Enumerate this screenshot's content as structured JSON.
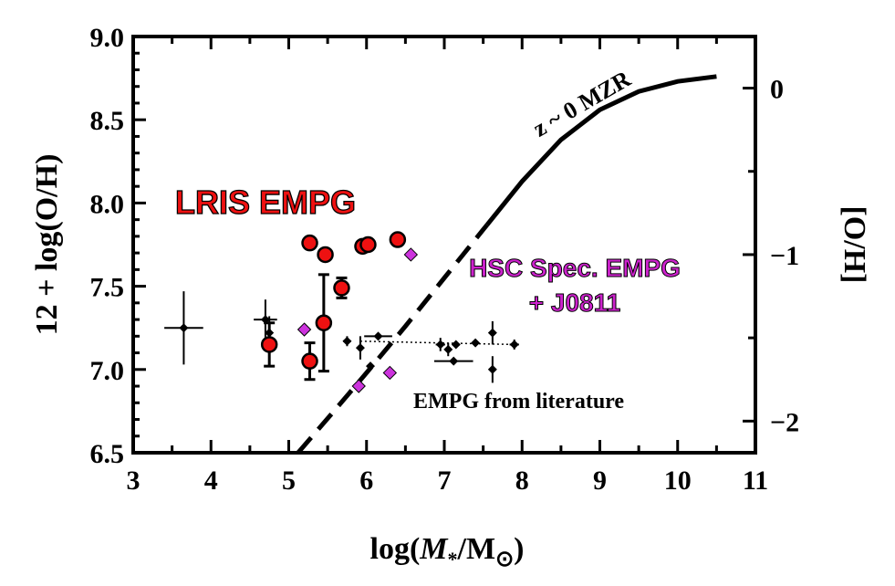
{
  "chart_data": {
    "type": "scatter",
    "xlabel": {
      "prefix": "log(",
      "mvar": "M",
      "sub": "*",
      "slash": "/M",
      "sun": "⊙",
      "suffix": ")"
    },
    "ylabel_left": "12 + log(O/H)",
    "ylabel_right": "[O/H]",
    "xlim": [
      3,
      11
    ],
    "ylim": [
      6.5,
      9.0
    ],
    "x_ticks": [
      "3",
      "4",
      "5",
      "6",
      "7",
      "8",
      "9",
      "10",
      "11"
    ],
    "y_ticks_left": [
      "6.5",
      "7.0",
      "7.5",
      "8.0",
      "8.5",
      "9.0"
    ],
    "y_ticks_right": [
      {
        "label": "0",
        "value": 8.69
      },
      {
        "label": "−1",
        "value": 7.69
      },
      {
        "label": "−2",
        "value": 6.69
      }
    ],
    "colors": {
      "lris": "#ee1111",
      "hsc": "#cc33dd",
      "hsc_label": "#cc22cc",
      "lit": "#000000",
      "mzr": "#000000"
    },
    "annotations": {
      "lris": "LRIS EMPG",
      "hsc_line1": "HSC Spec. EMPG",
      "hsc_line2": "+ J0811",
      "literature": "EMPG from literature",
      "mzr": "z ~ 0 MZR"
    },
    "series": [
      {
        "name": "LRIS EMPG",
        "marker": "circle",
        "points": [
          {
            "x": 4.75,
            "y": 7.15,
            "yerr": 0.13
          },
          {
            "x": 5.27,
            "y": 7.05,
            "yerr": 0.11
          },
          {
            "x": 5.27,
            "y": 7.76,
            "yerr": 0.0
          },
          {
            "x": 5.45,
            "y": 7.28,
            "yerr": 0.29
          },
          {
            "x": 5.47,
            "y": 7.69,
            "yerr": 0.0
          },
          {
            "x": 5.68,
            "y": 7.49,
            "yerr": 0.06
          },
          {
            "x": 5.95,
            "y": 7.74,
            "yerr": 0.0
          },
          {
            "x": 6.02,
            "y": 7.75,
            "yerr": 0.0
          },
          {
            "x": 6.4,
            "y": 7.78,
            "yerr": 0.0
          }
        ]
      },
      {
        "name": "HSC Spec. EMPG + J0811",
        "marker": "diamond",
        "points": [
          {
            "x": 5.2,
            "y": 7.24
          },
          {
            "x": 5.9,
            "y": 6.9
          },
          {
            "x": 6.3,
            "y": 6.98
          },
          {
            "x": 6.57,
            "y": 7.69
          }
        ]
      },
      {
        "name": "EMPG from literature",
        "marker": "small-diamond",
        "points": [
          {
            "x": 3.65,
            "y": 7.25,
            "xerr": 0.25,
            "yerr": 0.22
          },
          {
            "x": 4.7,
            "y": 7.3,
            "xerr": 0.15,
            "yerr": 0.12
          },
          {
            "x": 4.75,
            "y": 7.22,
            "xerr": 0.0,
            "yerr": 0.1
          },
          {
            "x": 5.75,
            "y": 7.17,
            "xerr": 0.05,
            "yerr": 0.03
          },
          {
            "x": 5.92,
            "y": 7.13,
            "xerr": 0.0,
            "yerr": 0.07
          },
          {
            "x": 6.15,
            "y": 7.2,
            "xerr": 0.18,
            "yerr": 0.0
          },
          {
            "x": 6.05,
            "y": 7.02,
            "xerr": 0.0,
            "yerr": 0.0
          },
          {
            "x": 6.95,
            "y": 7.15,
            "xerr": 0.06,
            "yerr": 0.04
          },
          {
            "x": 7.05,
            "y": 7.12,
            "xerr": 0.0,
            "yerr": 0.04
          },
          {
            "x": 7.15,
            "y": 7.15,
            "xerr": 0.05,
            "yerr": 0.0
          },
          {
            "x": 7.12,
            "y": 7.05,
            "xerr": 0.25,
            "yerr": 0.0
          },
          {
            "x": 7.4,
            "y": 7.16,
            "xerr": 0.0,
            "yerr": 0.0
          },
          {
            "x": 7.62,
            "y": 7.22,
            "xerr": 0.0,
            "yerr": 0.07
          },
          {
            "x": 7.62,
            "y": 7.0,
            "xerr": 0.0,
            "yerr": 0.08
          },
          {
            "x": 7.9,
            "y": 7.15,
            "xerr": 0.06,
            "yerr": 0.03
          }
        ],
        "link_line": [
          [
            5.92,
            7.17
          ],
          [
            7.9,
            7.15
          ]
        ]
      }
    ],
    "mzr_curve": {
      "name": "z ~ 0 MZR",
      "solid_from_x": 7.55,
      "points": [
        [
          5.12,
          6.5
        ],
        [
          5.6,
          6.76
        ],
        [
          6.0,
          6.98
        ],
        [
          6.5,
          7.26
        ],
        [
          7.0,
          7.55
        ],
        [
          7.5,
          7.84
        ],
        [
          8.0,
          8.13
        ],
        [
          8.5,
          8.38
        ],
        [
          9.0,
          8.56
        ],
        [
          9.5,
          8.67
        ],
        [
          10.0,
          8.73
        ],
        [
          10.5,
          8.76
        ]
      ]
    }
  }
}
